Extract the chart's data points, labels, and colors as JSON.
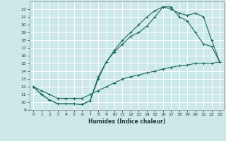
{
  "xlabel": "Humidex (Indice chaleur)",
  "bg_color": "#cce8e8",
  "grid_color": "#ffffff",
  "line_color": "#1a6b5a",
  "xlim": [
    -0.5,
    23.5
  ],
  "ylim": [
    9,
    23
  ],
  "xticks": [
    0,
    1,
    2,
    3,
    4,
    5,
    6,
    7,
    8,
    9,
    10,
    11,
    12,
    13,
    14,
    15,
    16,
    17,
    18,
    19,
    20,
    21,
    22,
    23
  ],
  "yticks": [
    9,
    10,
    11,
    12,
    13,
    14,
    15,
    16,
    17,
    18,
    19,
    20,
    21,
    22
  ],
  "curve1_x": [
    0,
    1,
    2,
    3,
    4,
    5,
    6,
    7,
    8,
    9,
    10,
    11,
    12,
    13,
    14,
    15,
    16,
    17,
    18,
    19,
    20,
    21,
    22,
    23
  ],
  "curve1_y": [
    12,
    11,
    10.3,
    9.8,
    9.8,
    9.8,
    9.7,
    10.2,
    13.0,
    15.2,
    16.7,
    18.0,
    19.0,
    20.0,
    21.0,
    21.8,
    22.3,
    22.3,
    21.0,
    20.5,
    19.0,
    17.5,
    17.2,
    15.2
  ],
  "curve2_x": [
    0,
    1,
    2,
    3,
    4,
    5,
    6,
    7,
    8,
    9,
    10,
    11,
    12,
    13,
    14,
    15,
    16,
    17,
    18,
    19,
    20,
    21,
    22,
    23
  ],
  "curve2_y": [
    12,
    11,
    10.3,
    9.8,
    9.8,
    9.8,
    9.7,
    10.2,
    13.3,
    15.2,
    16.5,
    17.5,
    18.5,
    19.0,
    19.8,
    21.0,
    22.3,
    22.0,
    21.5,
    21.2,
    21.5,
    21.0,
    18.0,
    15.2
  ],
  "curve3_x": [
    0,
    1,
    2,
    3,
    4,
    5,
    6,
    7,
    8,
    9,
    10,
    11,
    12,
    13,
    14,
    15,
    16,
    17,
    18,
    19,
    20,
    21,
    22,
    23
  ],
  "curve3_y": [
    12,
    11.5,
    11.0,
    10.5,
    10.5,
    10.5,
    10.5,
    11.0,
    11.5,
    12.0,
    12.5,
    13.0,
    13.3,
    13.5,
    13.8,
    14.0,
    14.3,
    14.5,
    14.7,
    14.8,
    15.0,
    15.0,
    15.0,
    15.2
  ]
}
